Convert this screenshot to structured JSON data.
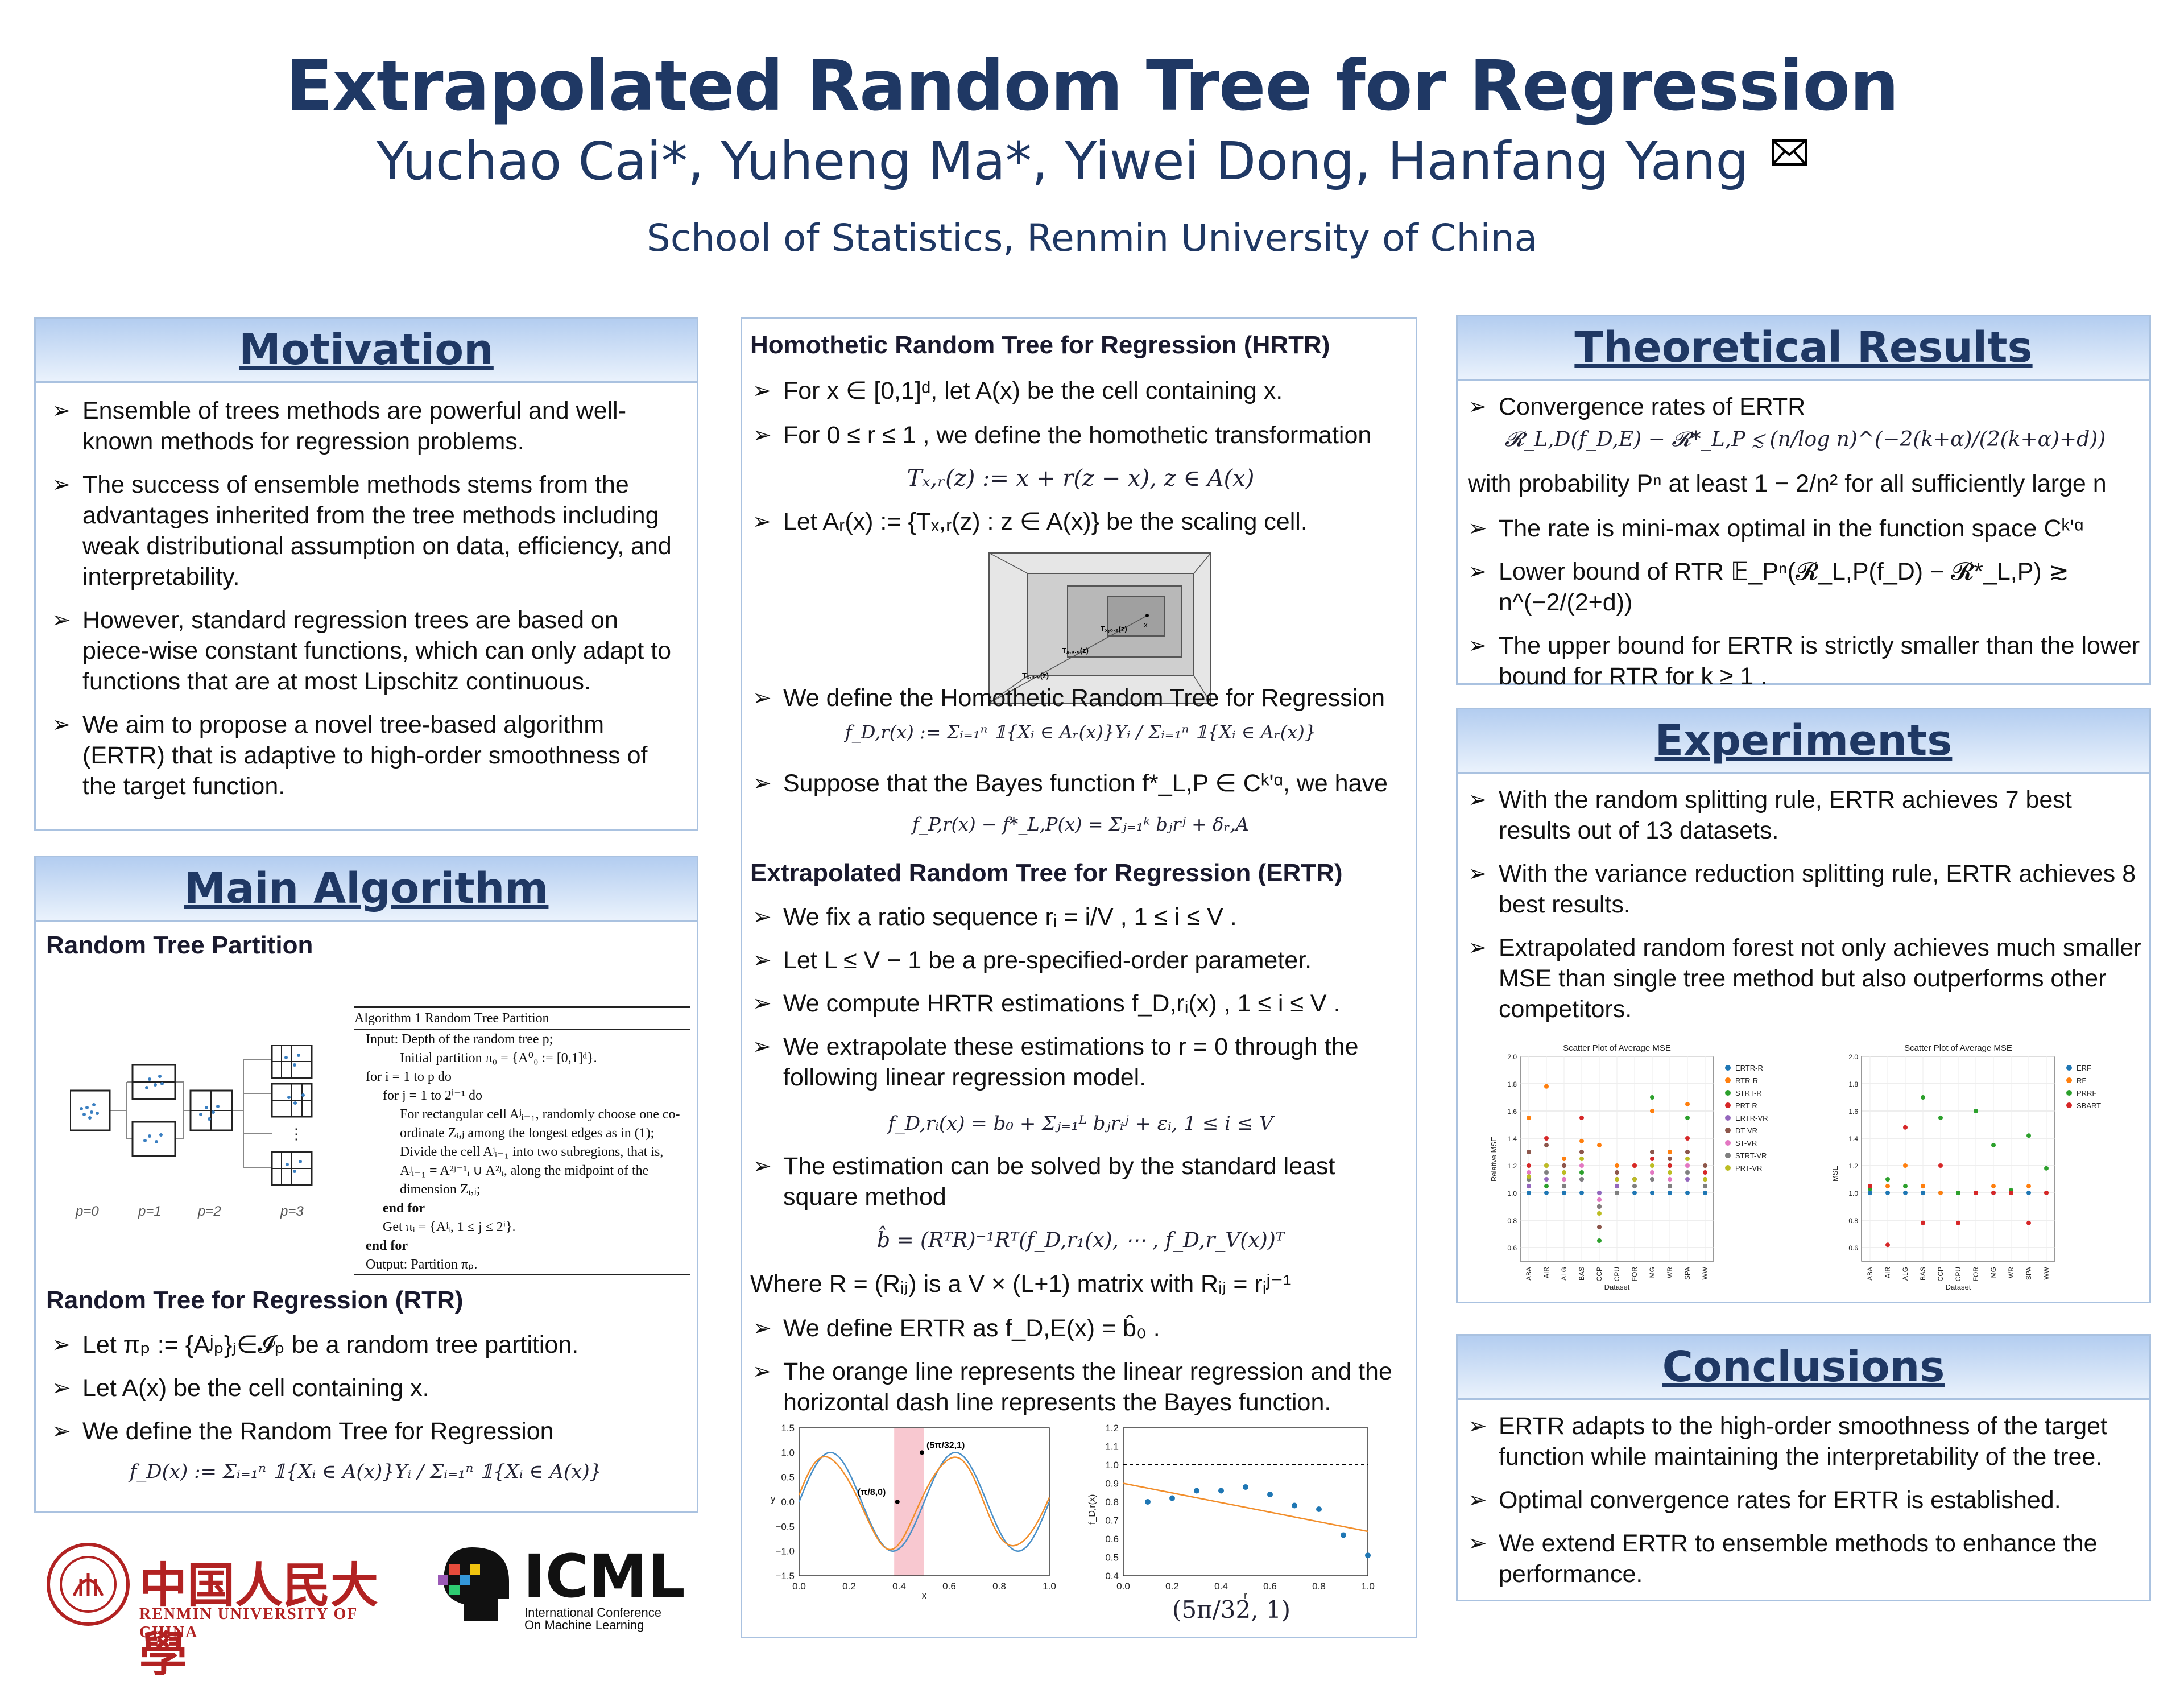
{
  "header": {
    "title": "Extrapolated Random Tree for Regression",
    "authors": "Yuchao Cai*, Yuheng Ma*, Yiwei Dong, Hanfang Yang",
    "affiliation": "School of Statistics, Renmin University of China"
  },
  "motivation": {
    "heading": "Motivation",
    "bullets": [
      "Ensemble of trees methods are powerful and well-known methods for regression problems.",
      "The success of ensemble methods stems from the advantages inherited from the tree methods including weak distributional assumption on data, efficiency, and interpretability.",
      "However, standard regression trees are based on piece-wise constant functions, which can only adapt to functions that are at most Lipschitz continuous.",
      "We aim to propose a novel tree-based algorithm (ERTR) that is adaptive to high-order smoothness of the target function."
    ]
  },
  "main_algorithm": {
    "heading": "Main Algorithm",
    "partition_title": "Random Tree Partition",
    "p_labels": [
      "p=0",
      "p=1",
      "p=2",
      "p=3"
    ],
    "algo_title": "Algorithm 1 Random Tree Partition",
    "algo_lines": [
      "Input: Depth of the random tree p;",
      "Initial partition π₀ = {A⁰₀ := [0,1]ᵈ}.",
      "for i = 1 to p do",
      "for j = 1 to 2ⁱ⁻¹ do",
      "For rectangular cell Aʲᵢ₋₁, randomly choose one co-",
      "ordinate Zᵢ,ⱼ among the longest edges as in (1);",
      "Divide the cell Aʲᵢ₋₁ into two subregions, that is,",
      "Aʲᵢ₋₁ = A²ʲ⁻¹ᵢ ∪ A²ʲᵢ, along the midpoint of the",
      "dimension Zᵢ,ⱼ;",
      "end for",
      "Get πᵢ = {Aʲᵢ, 1 ≤ j ≤ 2ⁱ}.",
      "end for",
      "Output: Partition πₚ."
    ],
    "rtr_title": "Random Tree for Regression (RTR)",
    "rtr_bullets": [
      "Let πₚ := {Aʲₚ}ⱼ∈𝓘ₚ be a random tree partition.",
      "Let A(x) be the cell containing x.",
      "We define the Random Tree for Regression"
    ],
    "rtr_formula": "f_D(x) := Σᵢ₌₁ⁿ 𝟙{Xᵢ ∈ A(x)}Yᵢ / Σᵢ₌₁ⁿ 𝟙{Xᵢ ∈ A(x)}"
  },
  "middle": {
    "hrtr_title": "Homothetic Random Tree for Regression (HRTR)",
    "hrtr_bullets": [
      "For x ∈ [0,1]ᵈ, let A(x) be the cell containing x.",
      "For 0 ≤ r ≤ 1 , we define the homothetic transformation",
      "Let Aᵣ(x) := {Tₓ,ᵣ(z) : z ∈ A(x)} be the scaling cell."
    ],
    "homothetic_formula": "Tₓ,ᵣ(z) := x + r(z − x),    z ∈ A(x)",
    "scaling_labels": [
      "x",
      "Tₓ,₀.₂(z)",
      "Tₓ,₀.₅(z)",
      "Tₓ,₀.₈(z)",
      "z"
    ],
    "hrtr_bullets2": [
      "We define the Homothetic Random Tree for Regression",
      "Suppose that the Bayes function f*_L,P ∈ Cᵏ'ᵅ, we have"
    ],
    "hrtr_formula": "f_D,r(x) := Σᵢ₌₁ⁿ 𝟙{Xᵢ ∈ Aᵣ(x)}Yᵢ / Σᵢ₌₁ⁿ 𝟙{Xᵢ ∈ Aᵣ(x)}",
    "bias_formula": "f_P,r(x) − f*_L,P(x) = Σⱼ₌₁ᵏ bⱼrʲ + δᵣ,A",
    "ertr_title": "Extrapolated Random Tree for Regression (ERTR)",
    "ertr_bullets": [
      "We fix a ratio sequence rᵢ = i/V , 1 ≤ i ≤ V .",
      "Let L ≤ V − 1 be a pre-specified-order parameter.",
      "We compute HRTR estimations f_D,rᵢ(x) , 1 ≤ i ≤ V .",
      "We extrapolate these estimations to r = 0 through the following linear regression model."
    ],
    "lr_formula": "f_D,rᵢ(x) = b₀ + Σⱼ₌₁ᴸ bⱼrᵢʲ + εᵢ,    1 ≤ i ≤ V",
    "ls_bullet": "The estimation can be solved by the standard least square method",
    "ls_formula": "b̂ = (RᵀR)⁻¹Rᵀ(f_D,r₁(x), ⋯ , f_D,r_V(x))ᵀ",
    "where_line": "Where R = (Rᵢⱼ) is a V × (L+1) matrix with Rᵢⱼ = rᵢʲ⁻¹",
    "ertr_bullets2": [
      "We define ERTR as f_D,E(x) = b̂₀ .",
      "The orange line represents the linear regression and the horizontal dash line represents the Bayes function."
    ],
    "plot_caption": "(5π/32, 1)"
  },
  "theory": {
    "heading": "Theoretical Results",
    "b1": "Convergence rates of ERTR",
    "rate_formula": "𝓡_L,D(f_D,E) − 𝓡*_L,P ≲ (n/log n)^(−2(k+α)/(2(k+α)+d))",
    "prob_line": "with probability Pⁿ at least 1 − 2/n² for all sufficiently large n",
    "bullets": [
      "The rate is mini-max optimal in the function space Cᵏ'ᵅ",
      "Lower bound of RTR 𝔼_Pⁿ(𝓡_L,P(f_D) − 𝓡*_L,P) ≳ n^(−2/(2+d))",
      "The upper bound for ERTR is strictly smaller than the lower bound for RTR for k ≥ 1 ."
    ]
  },
  "experiments": {
    "heading": "Experiments",
    "bullets": [
      "With the random splitting rule, ERTR achieves 7 best results out of 13 datasets.",
      "With the variance reduction splitting rule, ERTR achieves 8 best results.",
      "Extrapolated random forest not only achieves much smaller MSE than single tree method but also outperforms other competitors."
    ]
  },
  "conclusions": {
    "heading": "Conclusions",
    "bullets": [
      "ERTR adapts to the high-order smoothness of the target function while maintaining the interpretability of the tree.",
      "Optimal convergence rates for ERTR is established.",
      "We extend ERTR to ensemble methods to enhance the performance."
    ]
  },
  "logos": {
    "university_cn": "中国人民大學",
    "university_en": "RENMIN UNIVERSITY OF CHINA",
    "icml": "ICML",
    "icml_sub1": "International Conference",
    "icml_sub2": "On Machine Learning"
  },
  "chart_data": [
    {
      "type": "line",
      "xlabel": "x",
      "ylabel": "y",
      "xlim": [
        0.0,
        1.0
      ],
      "ylim": [
        -1.5,
        1.5
      ],
      "x_ticks": [
        "0.0",
        "0.2",
        "0.4",
        "0.6",
        "0.8",
        "1.0"
      ],
      "y_ticks": [
        "1.5",
        "1.0",
        "0.5",
        "0.0",
        "−0.5",
        "−1.0",
        "−1.5"
      ],
      "annotations": [
        "(π/8,0)",
        "(5π/32,1)"
      ],
      "highlight_band": [
        0.38,
        0.5
      ],
      "series": [
        {
          "color": "#4a90c8",
          "function": "sin(4πx)"
        },
        {
          "color": "#f28e2b",
          "function": "smoothed sin(4πx) estimate"
        }
      ]
    },
    {
      "type": "scatter",
      "xlabel": "r",
      "ylabel": "f_D,r(x)",
      "xlim": [
        0.0,
        1.0
      ],
      "ylim": [
        0.4,
        1.2
      ],
      "x_ticks": [
        "0.0",
        "0.2",
        "0.4",
        "0.6",
        "0.8",
        "1.0"
      ],
      "y_ticks": [
        "1.2",
        "1.1",
        "1.0",
        "0.9",
        "0.8",
        "0.7",
        "0.6",
        "0.5",
        "0.4"
      ],
      "bayes_line": 1.0,
      "fit_line": {
        "from": [
          0.0,
          0.9
        ],
        "to": [
          1.0,
          0.64
        ]
      },
      "points": {
        "x": [
          0.1,
          0.2,
          0.3,
          0.4,
          0.5,
          0.6,
          0.7,
          0.8,
          0.9,
          1.0
        ],
        "y": [
          0.8,
          0.82,
          0.86,
          0.86,
          0.88,
          0.84,
          0.78,
          0.76,
          0.62,
          0.51
        ]
      }
    },
    {
      "type": "scatter",
      "title": "Scatter Plot of Average MSE",
      "xlabel": "Dataset",
      "ylabel": "Relative MSE",
      "ylim": [
        0.5,
        2.0
      ],
      "y_ticks": [
        "2.0",
        "1.8",
        "1.6",
        "1.4",
        "1.2",
        "1.0",
        "0.8",
        "0.6"
      ],
      "categories": [
        "ABA",
        "AIR",
        "ALG",
        "BAS",
        "CCP",
        "CPU",
        "FOR",
        "MG",
        "WR",
        "SPA",
        "WW"
      ],
      "series": [
        {
          "name": "ERTR-R",
          "color": "#1f77b4",
          "values": [
            1.0,
            1.0,
            1.0,
            1.0,
            1.0,
            1.0,
            1.0,
            1.0,
            1.0,
            1.0,
            1.0
          ]
        },
        {
          "name": "RTR-R",
          "color": "#ff7f0e",
          "values": [
            1.55,
            1.78,
            1.25,
            1.38,
            1.35,
            1.2,
            1.2,
            1.6,
            1.3,
            1.65,
            1.2
          ]
        },
        {
          "name": "STRT-R",
          "color": "#2ca02c",
          "values": [
            1.1,
            1.05,
            1.1,
            1.15,
            0.65,
            1.05,
            1.05,
            1.7,
            1.2,
            1.55,
            1.1
          ]
        },
        {
          "name": "PRT-R",
          "color": "#d62728",
          "values": [
            1.2,
            1.4,
            1.2,
            1.55,
            0.9,
            1.1,
            1.2,
            1.25,
            1.2,
            1.4,
            1.15
          ]
        },
        {
          "name": "ERTR-VR",
          "color": "#9467bd",
          "values": [
            1.05,
            1.1,
            1.05,
            1.1,
            1.0,
            1.05,
            1.1,
            1.1,
            1.05,
            1.1,
            1.05
          ]
        },
        {
          "name": "DT-VR",
          "color": "#8c564b",
          "values": [
            1.3,
            1.35,
            1.2,
            1.3,
            0.75,
            1.15,
            1.1,
            1.3,
            1.25,
            1.3,
            1.2
          ]
        },
        {
          "name": "ST-VR",
          "color": "#e377c2",
          "values": [
            1.15,
            1.2,
            1.1,
            1.2,
            0.95,
            1.1,
            1.05,
            1.15,
            1.1,
            1.2,
            1.1
          ]
        },
        {
          "name": "STRT-VR",
          "color": "#7f7f7f",
          "values": [
            1.1,
            1.15,
            1.05,
            1.1,
            0.9,
            1.0,
            1.05,
            1.1,
            1.05,
            1.15,
            1.05
          ]
        },
        {
          "name": "PRT-VR",
          "color": "#bcbd22",
          "values": [
            1.12,
            1.2,
            1.15,
            1.25,
            0.85,
            1.1,
            1.1,
            1.2,
            1.15,
            1.25,
            1.1
          ]
        }
      ]
    },
    {
      "type": "scatter",
      "title": "Scatter Plot of Average MSE",
      "xlabel": "Dataset",
      "ylabel": "MSE",
      "ylim": [
        0.5,
        2.0
      ],
      "y_ticks": [
        "2.0",
        "1.8",
        "1.6",
        "1.4",
        "1.2",
        "1.0",
        "0.8",
        "0.6"
      ],
      "categories": [
        "ABA",
        "AIR",
        "ALG",
        "BAS",
        "CCP",
        "CPU",
        "FOR",
        "MG",
        "WR",
        "SPA",
        "WW"
      ],
      "series": [
        {
          "name": "ERF",
          "color": "#1f77b4",
          "values": [
            1.0,
            1.0,
            1.0,
            1.0,
            1.0,
            1.0,
            1.0,
            1.0,
            1.0,
            1.0,
            1.0
          ]
        },
        {
          "name": "RF",
          "color": "#ff7f0e",
          "values": [
            1.05,
            1.05,
            1.2,
            1.05,
            1.0,
            1.0,
            1.0,
            1.05,
            1.0,
            1.05,
            1.0
          ]
        },
        {
          "name": "PRRF",
          "color": "#2ca02c",
          "values": [
            1.03,
            1.1,
            1.05,
            1.7,
            1.55,
            1.0,
            1.6,
            1.35,
            1.02,
            1.42,
            1.18
          ]
        },
        {
          "name": "SBART",
          "color": "#d62728",
          "values": [
            1.05,
            0.62,
            1.48,
            0.78,
            1.2,
            0.78,
            1.0,
            1.0,
            1.0,
            0.78,
            1.0
          ]
        }
      ]
    }
  ]
}
